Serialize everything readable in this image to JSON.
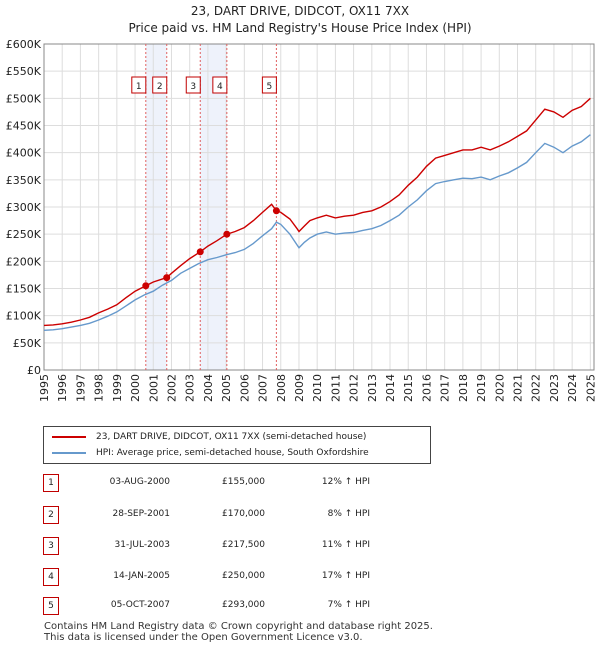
{
  "chart_data": {
    "type": "line",
    "title": "23, DART DRIVE, DIDCOT, OX11 7XX",
    "subtitle": "Price paid vs. HM Land Registry's House Price Index (HPI)",
    "xlabel": "",
    "ylabel": "",
    "xlim": [
      1995,
      2025.2
    ],
    "ylim": [
      0,
      600000
    ],
    "x_ticks": [
      1995,
      1996,
      1997,
      1998,
      1999,
      2000,
      2001,
      2002,
      2003,
      2004,
      2005,
      2006,
      2007,
      2008,
      2009,
      2010,
      2011,
      2012,
      2013,
      2014,
      2015,
      2016,
      2017,
      2018,
      2019,
      2020,
      2021,
      2022,
      2023,
      2024,
      2025
    ],
    "y_ticks": [
      {
        "value": 0,
        "label": "£0"
      },
      {
        "value": 50000,
        "label": "£50K"
      },
      {
        "value": 100000,
        "label": "£100K"
      },
      {
        "value": 150000,
        "label": "£150K"
      },
      {
        "value": 200000,
        "label": "£200K"
      },
      {
        "value": 250000,
        "label": "£250K"
      },
      {
        "value": 300000,
        "label": "£300K"
      },
      {
        "value": 350000,
        "label": "£350K"
      },
      {
        "value": 400000,
        "label": "£400K"
      },
      {
        "value": 450000,
        "label": "£450K"
      },
      {
        "value": 500000,
        "label": "£500K"
      },
      {
        "value": 550000,
        "label": "£550K"
      },
      {
        "value": 600000,
        "label": "£600K"
      }
    ],
    "grid": true,
    "series": [
      {
        "name": "23, DART DRIVE, DIDCOT, OX11 7XX (semi-detached house)",
        "color": "#cc0000",
        "x": [
          1995.0,
          1995.5,
          1996.0,
          1996.5,
          1997.0,
          1997.5,
          1998.0,
          1998.5,
          1999.0,
          1999.5,
          2000.0,
          2000.59,
          2001.0,
          2001.74,
          2002.0,
          2002.5,
          2003.0,
          2003.58,
          2004.0,
          2004.5,
          2005.04,
          2005.5,
          2006.0,
          2006.5,
          2007.0,
          2007.5,
          2007.76,
          2008.0,
          2008.5,
          2008.9,
          2009.0,
          2009.3,
          2009.6,
          2010.0,
          2010.5,
          2011.0,
          2011.5,
          2012.0,
          2012.5,
          2013.0,
          2013.5,
          2014.0,
          2014.5,
          2015.0,
          2015.5,
          2016.0,
          2016.5,
          2017.0,
          2017.5,
          2018.0,
          2018.5,
          2019.0,
          2019.5,
          2020.0,
          2020.5,
          2021.0,
          2021.5,
          2022.0,
          2022.5,
          2023.0,
          2023.5,
          2024.0,
          2024.5,
          2025.0
        ],
        "y": [
          82000,
          83000,
          85000,
          88000,
          92000,
          97000,
          105000,
          112000,
          120000,
          133000,
          145000,
          155000,
          162000,
          170000,
          178000,
          192000,
          205000,
          217500,
          228000,
          238000,
          250000,
          255000,
          262000,
          275000,
          290000,
          305000,
          293000,
          290000,
          278000,
          260000,
          255000,
          265000,
          275000,
          280000,
          285000,
          280000,
          283000,
          285000,
          290000,
          293000,
          300000,
          310000,
          322000,
          340000,
          355000,
          375000,
          390000,
          395000,
          400000,
          405000,
          405000,
          410000,
          405000,
          412000,
          420000,
          430000,
          440000,
          460000,
          480000,
          475000,
          465000,
          478000,
          485000,
          500000
        ]
      },
      {
        "name": "HPI: Average price, semi-detached house, South Oxfordshire",
        "color": "#6699cc",
        "x": [
          1995.0,
          1995.5,
          1996.0,
          1996.5,
          1997.0,
          1997.5,
          1998.0,
          1998.5,
          1999.0,
          1999.5,
          2000.0,
          2000.5,
          2001.0,
          2001.5,
          2002.0,
          2002.5,
          2003.0,
          2003.5,
          2004.0,
          2004.5,
          2005.0,
          2005.5,
          2006.0,
          2006.5,
          2007.0,
          2007.5,
          2007.76,
          2008.0,
          2008.5,
          2008.9,
          2009.0,
          2009.3,
          2009.6,
          2010.0,
          2010.5,
          2011.0,
          2011.5,
          2012.0,
          2012.5,
          2013.0,
          2013.5,
          2014.0,
          2014.5,
          2015.0,
          2015.5,
          2016.0,
          2016.5,
          2017.0,
          2017.5,
          2018.0,
          2018.5,
          2019.0,
          2019.5,
          2020.0,
          2020.5,
          2021.0,
          2021.5,
          2022.0,
          2022.5,
          2023.0,
          2023.5,
          2024.0,
          2024.5,
          2025.0
        ],
        "y": [
          73000,
          74000,
          76000,
          79000,
          82000,
          86000,
          92000,
          99000,
          107000,
          118000,
          129000,
          138000,
          145000,
          156000,
          165000,
          178000,
          187000,
          196000,
          203000,
          207000,
          212000,
          216000,
          222000,
          233000,
          247000,
          260000,
          272000,
          268000,
          250000,
          230000,
          225000,
          235000,
          243000,
          250000,
          254000,
          250000,
          252000,
          253000,
          257000,
          260000,
          266000,
          275000,
          285000,
          300000,
          313000,
          330000,
          343000,
          347000,
          350000,
          353000,
          352000,
          355000,
          350000,
          357000,
          363000,
          372000,
          382000,
          400000,
          417000,
          410000,
          400000,
          412000,
          420000,
          433000
        ]
      }
    ],
    "sales": [
      {
        "n": "1",
        "x": 2000.59,
        "price": 155000
      },
      {
        "n": "2",
        "x": 2001.74,
        "price": 170000
      },
      {
        "n": "3",
        "x": 2003.58,
        "price": 217500
      },
      {
        "n": "4",
        "x": 2005.04,
        "price": 250000
      },
      {
        "n": "5",
        "x": 2007.76,
        "price": 293000
      }
    ]
  },
  "legend": {
    "property_label": "23, DART DRIVE, DIDCOT, OX11 7XX (semi-detached house)",
    "hpi_label": "HPI: Average price, semi-detached house, South Oxfordshire"
  },
  "transactions": [
    {
      "n": "1",
      "date": "03-AUG-2000",
      "price": "£155,000",
      "hpi": "12% ↑ HPI"
    },
    {
      "n": "2",
      "date": "28-SEP-2001",
      "price": "£170,000",
      "hpi": "8% ↑ HPI"
    },
    {
      "n": "3",
      "date": "31-JUL-2003",
      "price": "£217,500",
      "hpi": "11% ↑ HPI"
    },
    {
      "n": "4",
      "date": "14-JAN-2005",
      "price": "£250,000",
      "hpi": "17% ↑ HPI"
    },
    {
      "n": "5",
      "date": "05-OCT-2007",
      "price": "£293,000",
      "hpi": "7% ↑ HPI"
    }
  ],
  "footer": {
    "line1": "Contains HM Land Registry data © Crown copyright and database right 2025.",
    "line2": "This data is licensed under the Open Government Licence v3.0."
  }
}
